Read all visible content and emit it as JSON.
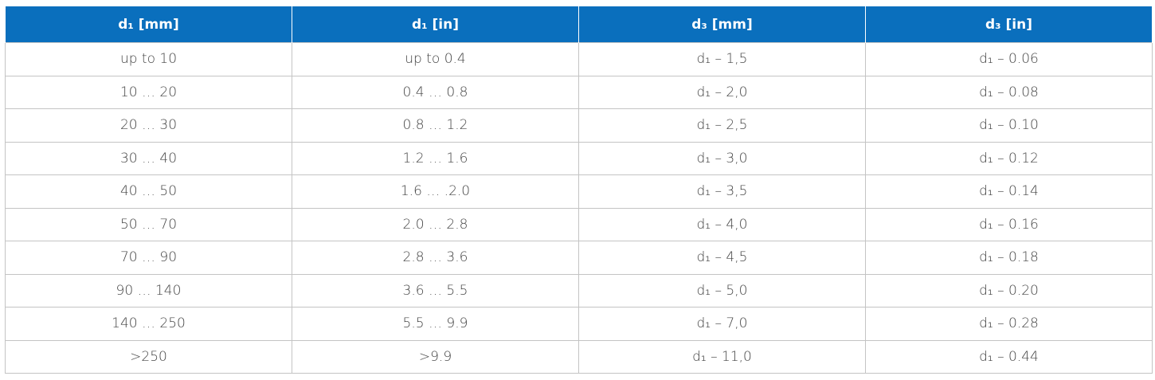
{
  "table": {
    "header": [
      "d₁ [mm]",
      "d₁ [in]",
      "d₃ [mm]",
      "d₃ [in]"
    ],
    "rows": [
      [
        "up to 10",
        "up to 0.4",
        "d₁ – 1,5",
        "d₁ – 0.06"
      ],
      [
        "10 … 20",
        "0.4 … 0.8",
        "d₁ – 2,0",
        "d₁ – 0.08"
      ],
      [
        "20 … 30",
        "0.8 … 1.2",
        "d₁ – 2,5",
        "d₁ – 0.10"
      ],
      [
        "30 … 40",
        "1.2 … 1.6",
        "d₁ – 3,0",
        "d₁ – 0.12"
      ],
      [
        "40 … 50",
        "1.6 … .2.0",
        "d₁ – 3,5",
        "d₁ – 0.14"
      ],
      [
        "50 … 70",
        "2.0 … 2.8",
        "d₁ – 4,0",
        "d₁ – 0.16"
      ],
      [
        "70 … 90",
        "2.8 … 3.6",
        "d₁ – 4,5",
        "d₁ – 0.18"
      ],
      [
        "90 … 140",
        "3.6 … 5.5",
        "d₁ – 5,0",
        "d₁ – 0.20"
      ],
      [
        "140 … 250",
        "5.5 … 9.9",
        "d₁ – 7,0",
        "d₁ – 0.28"
      ],
      [
        ">250",
        ">9.9",
        "d₁ – 11,0",
        "d₁ – 0.44"
      ]
    ]
  }
}
